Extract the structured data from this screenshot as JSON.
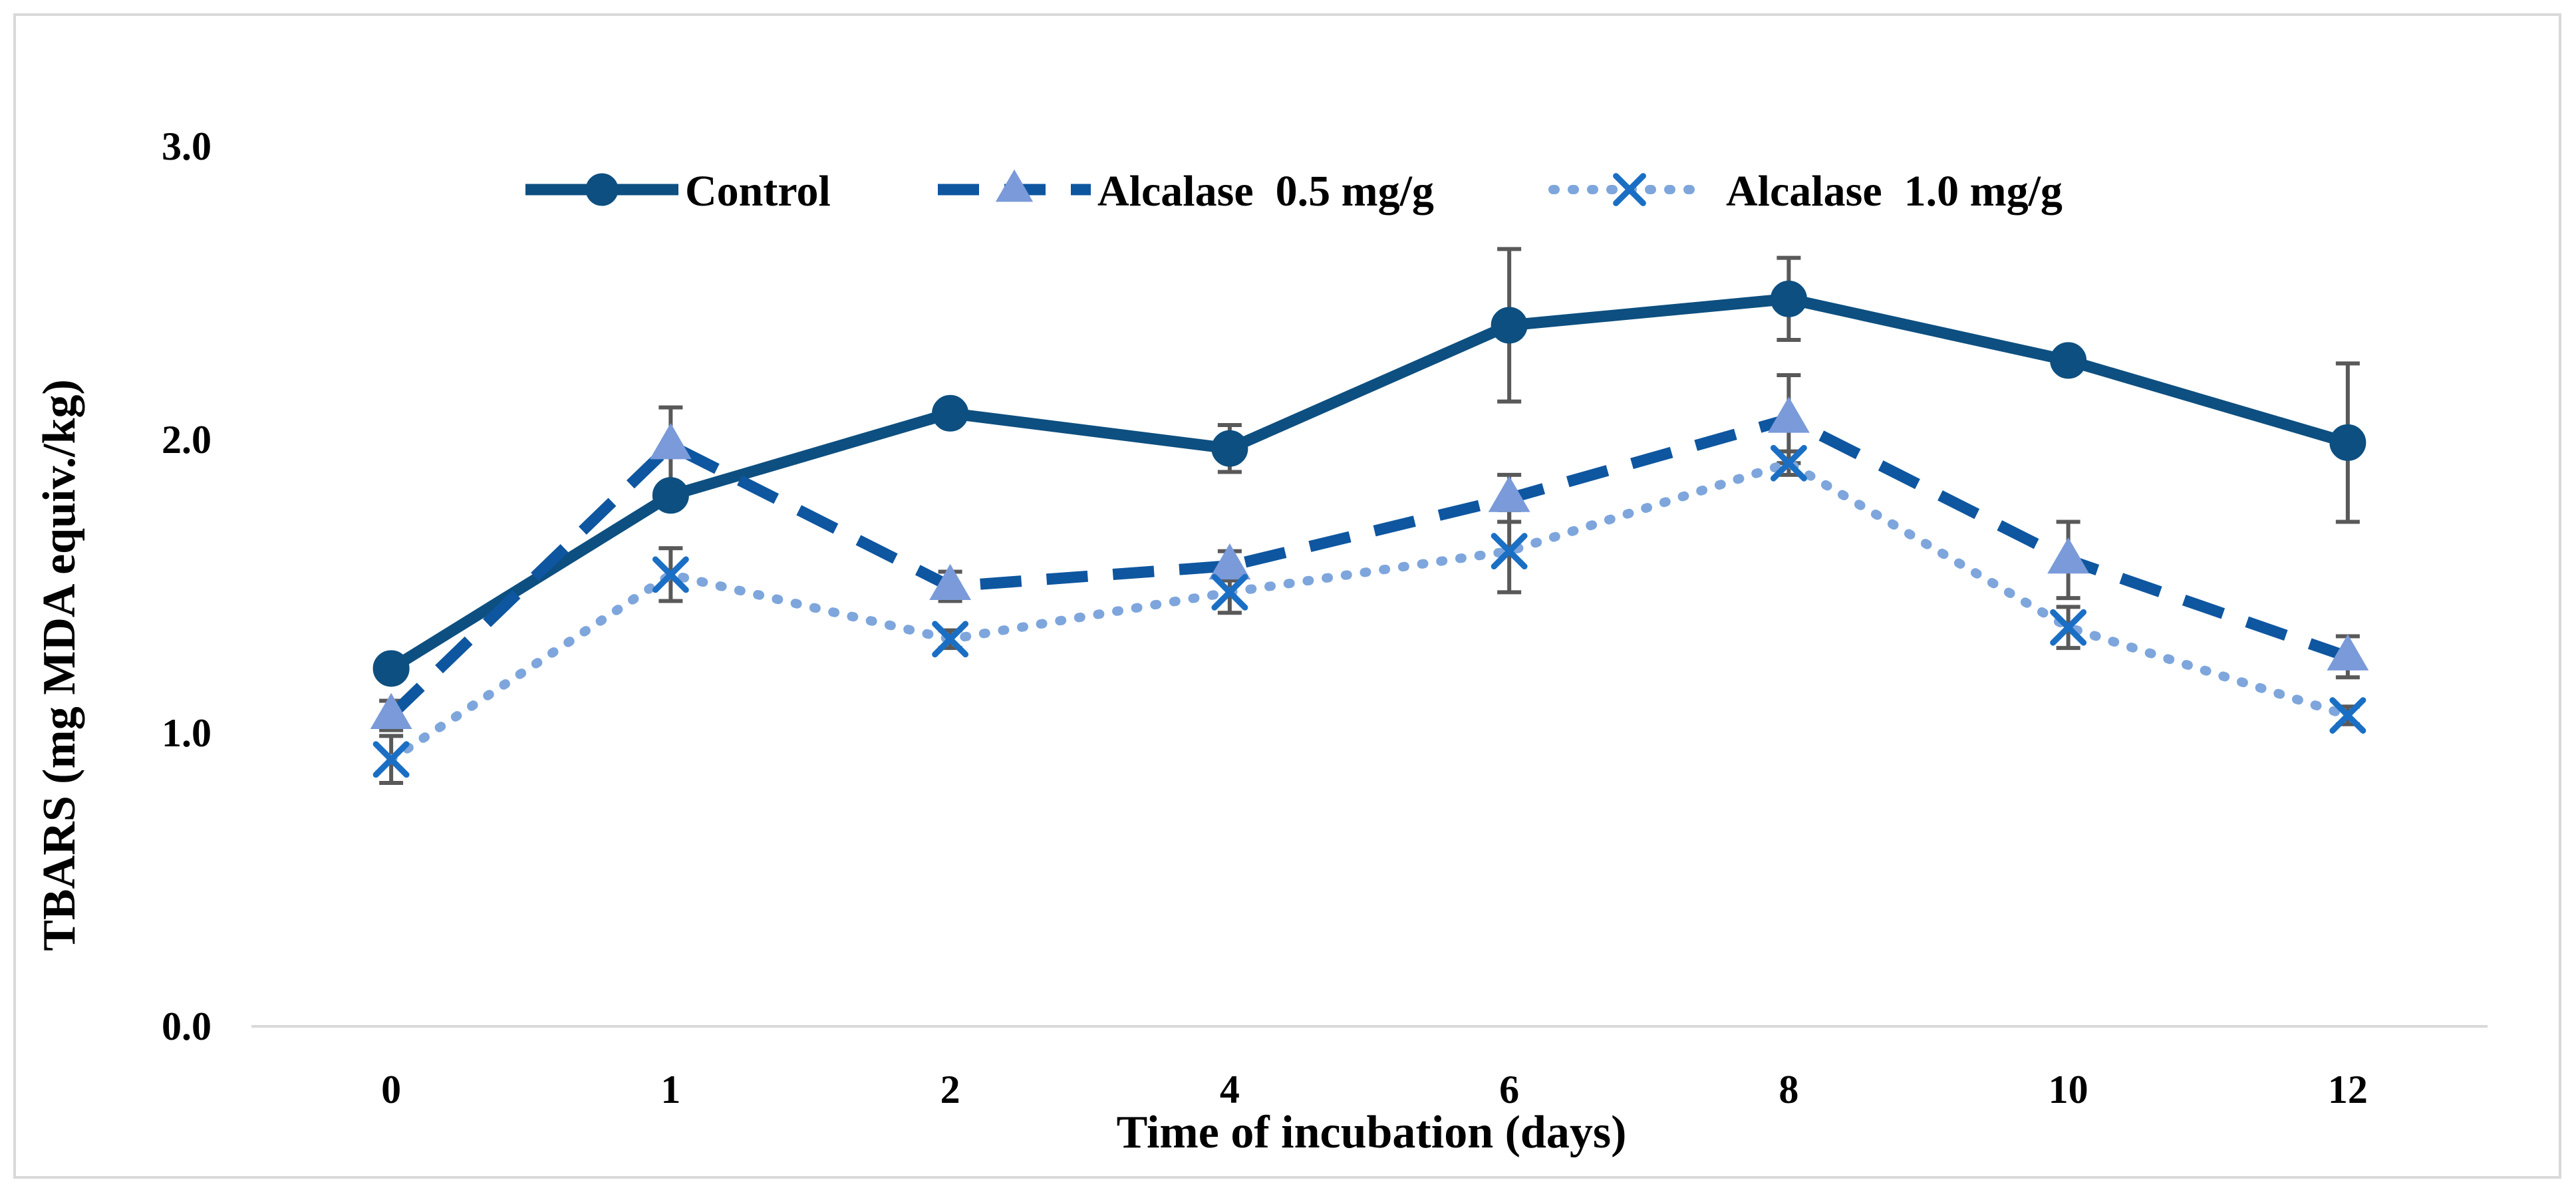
{
  "chart_data": {
    "type": "line",
    "categories": [
      "0",
      "1",
      "2",
      "4",
      "6",
      "8",
      "10",
      "12"
    ],
    "xlabel": "Time of incubation (days)",
    "ylabel": "TBARS (mg MDA equiv./kg)",
    "ylim": [
      0,
      3
    ],
    "yticks": [
      "0.0",
      "1.0",
      "2.0",
      "3.0"
    ],
    "legend_position": "top",
    "series": [
      {
        "name": "Control",
        "values": [
          1.22,
          1.81,
          2.09,
          1.97,
          2.39,
          2.48,
          2.27,
          1.99
        ],
        "errors": [
          0.02,
          0.02,
          0.02,
          0.08,
          0.26,
          0.14,
          0.02,
          0.27
        ],
        "color": "#0d4f80",
        "line_style": "solid",
        "marker": "circle"
      },
      {
        "name": "Alcalase  0.5 mg/g",
        "values": [
          1.06,
          1.98,
          1.5,
          1.57,
          1.8,
          2.07,
          1.59,
          1.26
        ],
        "errors": [
          0.05,
          0.13,
          0.05,
          0.05,
          0.08,
          0.15,
          0.13,
          0.07
        ],
        "color": "#0e56a0",
        "marker_color": "#7a9ad9",
        "line_style": "dashed",
        "marker": "triangle"
      },
      {
        "name": "Alcalase  1.0 mg/g",
        "values": [
          0.91,
          1.54,
          1.32,
          1.48,
          1.62,
          1.92,
          1.36,
          1.06
        ],
        "errors": [
          0.08,
          0.09,
          0.03,
          0.07,
          0.14,
          0.04,
          0.07,
          0.03
        ],
        "color": "#7ea6dc",
        "marker_color": "#1a6fc4",
        "line_style": "dotted",
        "marker": "x"
      }
    ]
  }
}
